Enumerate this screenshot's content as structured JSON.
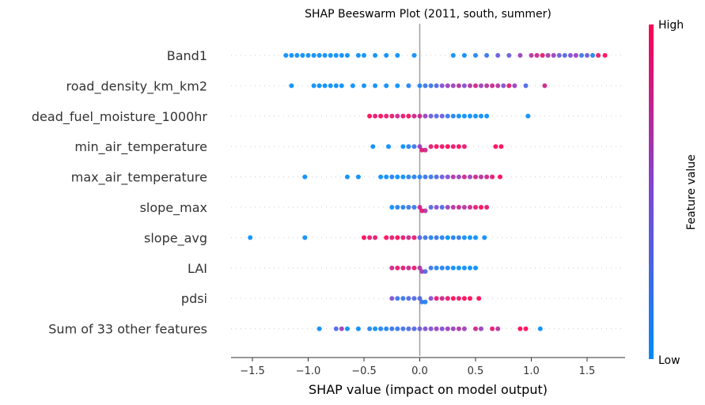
{
  "chart_data": {
    "type": "scatter",
    "subtype": "shap-beeswarm",
    "title": "SHAP Beeswarm Plot (2011, south, summer)",
    "xlabel": "SHAP value (impact on model output)",
    "xlim": [
      -1.68,
      1.85
    ],
    "xticks": [
      -1.5,
      -1.0,
      -0.5,
      0.0,
      0.5,
      1.0,
      1.5
    ],
    "xtick_labels": [
      "−1.5",
      "−1.0",
      "−0.5",
      "0.0",
      "0.5",
      "1.0",
      "1.5"
    ],
    "colorbar": {
      "label": "Feature value",
      "high_label": "High",
      "low_label": "Low",
      "low_color": "#008bfb",
      "high_color": "#ff0052"
    },
    "features": [
      {
        "name": "Band1",
        "samples": [
          [
            -1.2,
            0
          ],
          [
            -1.15,
            0
          ],
          [
            -1.1,
            0
          ],
          [
            -1.05,
            0
          ],
          [
            -1.0,
            0
          ],
          [
            -0.95,
            0
          ],
          [
            -0.9,
            0
          ],
          [
            -0.85,
            0
          ],
          [
            -0.8,
            0
          ],
          [
            -0.75,
            0
          ],
          [
            -0.7,
            0
          ],
          [
            -0.65,
            0
          ],
          [
            -0.55,
            0
          ],
          [
            -0.5,
            0
          ],
          [
            -0.4,
            0
          ],
          [
            -0.3,
            0
          ],
          [
            -0.2,
            0
          ],
          [
            -0.05,
            0
          ],
          [
            0.3,
            0
          ],
          [
            0.4,
            0
          ],
          [
            0.5,
            0.1
          ],
          [
            0.6,
            0.2
          ],
          [
            0.7,
            0.4
          ],
          [
            0.8,
            0.4
          ],
          [
            0.9,
            0.6
          ],
          [
            1.0,
            0.7
          ],
          [
            1.05,
            0.8
          ],
          [
            1.1,
            0.9
          ],
          [
            1.15,
            0.7
          ],
          [
            1.2,
            0.6
          ],
          [
            1.25,
            0.4
          ],
          [
            1.3,
            0.3
          ],
          [
            1.35,
            0.5
          ],
          [
            1.4,
            0.6
          ],
          [
            1.45,
            0.2
          ],
          [
            1.5,
            0.4
          ],
          [
            1.55,
            0.1
          ],
          [
            1.6,
            0.9
          ],
          [
            1.66,
            1.0
          ]
        ]
      },
      {
        "name": "road_density_km_km2",
        "samples": [
          [
            -1.15,
            0
          ],
          [
            -0.95,
            0
          ],
          [
            -0.9,
            0
          ],
          [
            -0.85,
            0
          ],
          [
            -0.8,
            0
          ],
          [
            -0.75,
            0
          ],
          [
            -0.7,
            0
          ],
          [
            -0.6,
            0
          ],
          [
            -0.5,
            0
          ],
          [
            -0.4,
            0
          ],
          [
            -0.3,
            0
          ],
          [
            -0.2,
            0
          ],
          [
            -0.1,
            0.1
          ],
          [
            0.0,
            0.1
          ],
          [
            0.05,
            0.2
          ],
          [
            0.1,
            0.2
          ],
          [
            0.15,
            0.3
          ],
          [
            0.2,
            0.5
          ],
          [
            0.25,
            0.6
          ],
          [
            0.3,
            0.6
          ],
          [
            0.35,
            0.7
          ],
          [
            0.4,
            0.5
          ],
          [
            0.45,
            0.7
          ],
          [
            0.5,
            0.8
          ],
          [
            0.55,
            0.6
          ],
          [
            0.6,
            0.7
          ],
          [
            0.65,
            0.8
          ],
          [
            0.7,
            0.7
          ],
          [
            0.75,
            0.5
          ],
          [
            0.8,
            0.9
          ],
          [
            0.85,
            0.6
          ],
          [
            0.95,
            0.3
          ],
          [
            1.12,
            0.8
          ]
        ]
      },
      {
        "name": "dead_fuel_moisture_1000hr",
        "samples": [
          [
            -0.45,
            1.0
          ],
          [
            -0.4,
            0.9
          ],
          [
            -0.35,
            1.0
          ],
          [
            -0.3,
            0.9
          ],
          [
            -0.25,
            0.9
          ],
          [
            -0.2,
            0.8
          ],
          [
            -0.15,
            0.9
          ],
          [
            -0.1,
            1.0
          ],
          [
            -0.05,
            0.8
          ],
          [
            0.0,
            0.8
          ],
          [
            0.05,
            0.6
          ],
          [
            0.1,
            0.4
          ],
          [
            0.15,
            0.3
          ],
          [
            0.2,
            0.4
          ],
          [
            0.25,
            0.2
          ],
          [
            0.3,
            0.1
          ],
          [
            0.35,
            0.0
          ],
          [
            0.4,
            0.0
          ],
          [
            0.45,
            0.0
          ],
          [
            0.5,
            0.0
          ],
          [
            0.55,
            0.0
          ],
          [
            0.6,
            0.0
          ],
          [
            0.97,
            0.0
          ]
        ]
      },
      {
        "name": "min_air_temperature",
        "samples": [
          [
            -0.42,
            0.0
          ],
          [
            -0.28,
            0.0
          ],
          [
            -0.15,
            0.0
          ],
          [
            -0.1,
            0.1
          ],
          [
            -0.05,
            0.2
          ],
          [
            0.0,
            0.6
          ],
          [
            0.02,
            0.9
          ],
          [
            0.05,
            0.8
          ],
          [
            0.1,
            0.9
          ],
          [
            0.15,
            1.0
          ],
          [
            0.2,
            0.9
          ],
          [
            0.25,
            1.0
          ],
          [
            0.3,
            0.9
          ],
          [
            0.35,
            1.0
          ],
          [
            0.4,
            0.9
          ],
          [
            0.68,
            1.0
          ],
          [
            0.73,
            1.0
          ]
        ]
      },
      {
        "name": "max_air_temperature",
        "samples": [
          [
            -1.03,
            0.0
          ],
          [
            -0.65,
            0.0
          ],
          [
            -0.55,
            0.0
          ],
          [
            -0.35,
            0.0
          ],
          [
            -0.3,
            0.0
          ],
          [
            -0.25,
            0.1
          ],
          [
            -0.2,
            0.0
          ],
          [
            -0.15,
            0.0
          ],
          [
            -0.1,
            0.1
          ],
          [
            -0.05,
            0.1
          ],
          [
            0.0,
            0.1
          ],
          [
            0.05,
            0.2
          ],
          [
            0.1,
            0.2
          ],
          [
            0.15,
            0.3
          ],
          [
            0.2,
            0.4
          ],
          [
            0.25,
            0.5
          ],
          [
            0.3,
            0.7
          ],
          [
            0.35,
            0.6
          ],
          [
            0.4,
            0.8
          ],
          [
            0.45,
            0.6
          ],
          [
            0.5,
            0.8
          ],
          [
            0.55,
            0.7
          ],
          [
            0.6,
            0.8
          ],
          [
            0.65,
            0.9
          ],
          [
            0.72,
            1.0
          ]
        ]
      },
      {
        "name": "slope_max",
        "samples": [
          [
            -0.25,
            0.0
          ],
          [
            -0.2,
            0.1
          ],
          [
            -0.15,
            0.1
          ],
          [
            -0.1,
            0.2
          ],
          [
            -0.05,
            0.2
          ],
          [
            0.0,
            0.8
          ],
          [
            0.02,
            0.9
          ],
          [
            0.05,
            0.7
          ],
          [
            0.1,
            0.3
          ],
          [
            0.15,
            0.5
          ],
          [
            0.2,
            0.3
          ],
          [
            0.25,
            0.6
          ],
          [
            0.3,
            0.7
          ],
          [
            0.35,
            0.8
          ],
          [
            0.4,
            0.7
          ],
          [
            0.45,
            0.8
          ],
          [
            0.5,
            0.9
          ],
          [
            0.55,
            1.0
          ],
          [
            0.6,
            0.9
          ]
        ]
      },
      {
        "name": "slope_avg",
        "samples": [
          [
            -1.52,
            0.0
          ],
          [
            -1.03,
            0.0
          ],
          [
            -0.5,
            1.0
          ],
          [
            -0.45,
            0.9
          ],
          [
            -0.4,
            0.9
          ],
          [
            -0.3,
            1.0
          ],
          [
            -0.25,
            0.9
          ],
          [
            -0.2,
            1.0
          ],
          [
            -0.15,
            0.9
          ],
          [
            -0.1,
            0.8
          ],
          [
            -0.05,
            0.9
          ],
          [
            0.0,
            0.3
          ],
          [
            0.05,
            0.2
          ],
          [
            0.1,
            0.1
          ],
          [
            0.15,
            0.2
          ],
          [
            0.2,
            0.1
          ],
          [
            0.25,
            0.0
          ],
          [
            0.3,
            0.1
          ],
          [
            0.35,
            0.2
          ],
          [
            0.4,
            0.0
          ],
          [
            0.45,
            0.0
          ],
          [
            0.5,
            0.0
          ],
          [
            0.58,
            0.0
          ]
        ]
      },
      {
        "name": "LAI",
        "samples": [
          [
            -0.25,
            0.8
          ],
          [
            -0.2,
            0.9
          ],
          [
            -0.15,
            0.9
          ],
          [
            -0.1,
            0.8
          ],
          [
            -0.05,
            0.9
          ],
          [
            0.0,
            0.7
          ],
          [
            0.02,
            0.6
          ],
          [
            0.05,
            0.3
          ],
          [
            0.1,
            0.2
          ],
          [
            0.15,
            0.1
          ],
          [
            0.2,
            0.1
          ],
          [
            0.25,
            0.1
          ],
          [
            0.3,
            0.0
          ],
          [
            0.35,
            0.0
          ],
          [
            0.4,
            0.0
          ],
          [
            0.45,
            0.0
          ],
          [
            0.5,
            0.0
          ]
        ]
      },
      {
        "name": "pdsi",
        "samples": [
          [
            -0.25,
            0.5
          ],
          [
            -0.2,
            0.2
          ],
          [
            -0.15,
            0.2
          ],
          [
            -0.1,
            0.3
          ],
          [
            -0.05,
            0.3
          ],
          [
            0.0,
            0.3
          ],
          [
            0.02,
            0.2
          ],
          [
            0.05,
            0.1
          ],
          [
            0.1,
            0.5
          ],
          [
            0.15,
            0.9
          ],
          [
            0.2,
            0.8
          ],
          [
            0.25,
            0.9
          ],
          [
            0.3,
            1.0
          ],
          [
            0.35,
            0.9
          ],
          [
            0.4,
            1.0
          ],
          [
            0.45,
            1.0
          ],
          [
            0.53,
            1.0
          ]
        ]
      },
      {
        "name": "Sum of 33 other features",
        "samples": [
          [
            -0.9,
            0.0
          ],
          [
            -0.75,
            0.3
          ],
          [
            -0.7,
            0.6
          ],
          [
            -0.65,
            0.0
          ],
          [
            -0.55,
            0.0
          ],
          [
            -0.45,
            0.1
          ],
          [
            -0.4,
            0.0
          ],
          [
            -0.35,
            0.1
          ],
          [
            -0.3,
            0.1
          ],
          [
            -0.25,
            0.2
          ],
          [
            -0.2,
            0.2
          ],
          [
            -0.15,
            0.2
          ],
          [
            -0.1,
            0.3
          ],
          [
            -0.05,
            0.3
          ],
          [
            0.0,
            0.4
          ],
          [
            0.05,
            0.5
          ],
          [
            0.1,
            0.5
          ],
          [
            0.15,
            0.6
          ],
          [
            0.2,
            0.5
          ],
          [
            0.25,
            0.6
          ],
          [
            0.3,
            0.6
          ],
          [
            0.35,
            0.7
          ],
          [
            0.4,
            0.6
          ],
          [
            0.5,
            0.8
          ],
          [
            0.55,
            0.6
          ],
          [
            0.65,
            0.9
          ],
          [
            0.7,
            0.7
          ],
          [
            0.9,
            1.0
          ],
          [
            0.95,
            1.0
          ],
          [
            1.08,
            0.0
          ]
        ]
      }
    ]
  }
}
